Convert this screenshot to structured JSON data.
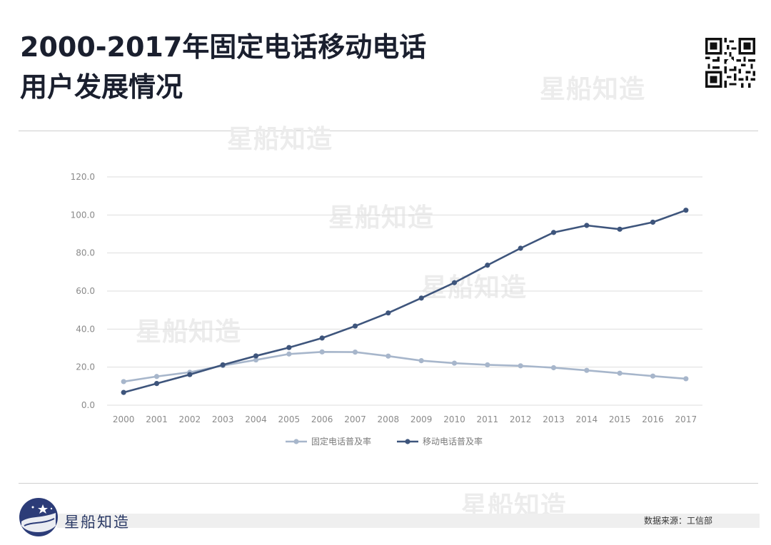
{
  "title": {
    "line1": "2000-2017年固定电话移动电话",
    "line2": "用户发展情况"
  },
  "watermark_text": "星船知造",
  "brand_name": "星船知造",
  "source_text": "数据来源：工信部",
  "colors": {
    "fixed": "#a7b6cb",
    "mobile": "#3e557c",
    "grid": "#dedede",
    "tick": "#8a8a8a"
  },
  "chart_data": {
    "type": "line",
    "categories": [
      "2000",
      "2001",
      "2002",
      "2003",
      "2004",
      "2005",
      "2006",
      "2007",
      "2008",
      "2009",
      "2010",
      "2011",
      "2012",
      "2013",
      "2014",
      "2015",
      "2016",
      "2017"
    ],
    "series": [
      {
        "name": "固定电话普及率",
        "values": [
          12.4,
          15.1,
          17.3,
          20.8,
          23.8,
          26.9,
          28.0,
          27.9,
          25.8,
          23.4,
          22.1,
          21.2,
          20.7,
          19.7,
          18.3,
          16.8,
          15.3,
          13.9
        ]
      },
      {
        "name": "移动电话普及率",
        "values": [
          6.7,
          11.4,
          16.1,
          21.2,
          25.9,
          30.3,
          35.3,
          41.6,
          48.5,
          56.3,
          64.4,
          73.6,
          82.5,
          90.8,
          94.5,
          92.5,
          96.2,
          102.5
        ]
      }
    ],
    "yticks": [
      "0.0",
      "20.0",
      "40.0",
      "60.0",
      "80.0",
      "100.0",
      "120.0"
    ],
    "ylim": [
      0,
      120
    ],
    "legend": "bottom",
    "grid": true
  }
}
